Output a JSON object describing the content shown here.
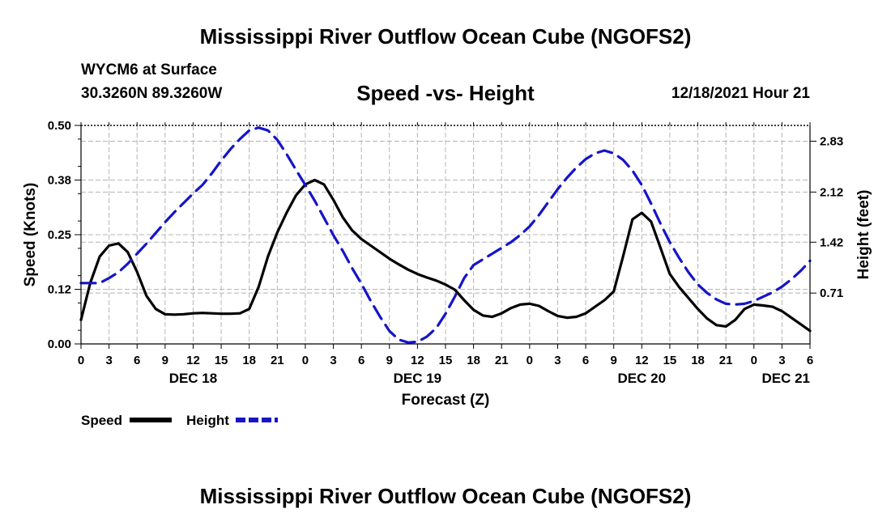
{
  "header": {
    "title": "Mississippi River Outflow Ocean Cube (NGOFS2)",
    "station": "WYCM6 at Surface",
    "coords": "30.3260N  89.3260W",
    "subtitle": "Speed -vs- Height",
    "timestamp": "12/18/2021 Hour 21"
  },
  "footer": {
    "title": "Mississippi River Outflow Ocean Cube (NGOFS2)"
  },
  "colors": {
    "speed": "#000000",
    "height": "#1515c8",
    "grid": "#b4b4b4"
  },
  "chart_data": {
    "type": "line",
    "xlabel": "Forecast (Z)",
    "ylabel_left": "Speed (Knots)",
    "ylabel_right": "Height (feet)",
    "x_range_hours": [
      0,
      78
    ],
    "ylim_left": [
      0,
      0.5
    ],
    "ylim_right": [
      0,
      3.05
    ],
    "yticks_left": [
      {
        "value": 0.0,
        "label": "0.00"
      },
      {
        "value": 0.125,
        "label": "0.12"
      },
      {
        "value": 0.25,
        "label": "0.25"
      },
      {
        "value": 0.375,
        "label": "0.38"
      },
      {
        "value": 0.5,
        "label": "0.50"
      }
    ],
    "yticks_right": [
      {
        "value": 0.71,
        "label": "0.71"
      },
      {
        "value": 1.42,
        "label": "1.42"
      },
      {
        "value": 2.12,
        "label": "2.12"
      },
      {
        "value": 2.83,
        "label": "2.83"
      }
    ],
    "xticks": [
      {
        "h": 0,
        "label": "0"
      },
      {
        "h": 3,
        "label": "3"
      },
      {
        "h": 6,
        "label": "6"
      },
      {
        "h": 9,
        "label": "9"
      },
      {
        "h": 12,
        "label": "12"
      },
      {
        "h": 15,
        "label": "15"
      },
      {
        "h": 18,
        "label": "18"
      },
      {
        "h": 21,
        "label": "21"
      },
      {
        "h": 24,
        "label": "0"
      },
      {
        "h": 27,
        "label": "3"
      },
      {
        "h": 30,
        "label": "6"
      },
      {
        "h": 33,
        "label": "9"
      },
      {
        "h": 36,
        "label": "12"
      },
      {
        "h": 39,
        "label": "15"
      },
      {
        "h": 42,
        "label": "18"
      },
      {
        "h": 45,
        "label": "21"
      },
      {
        "h": 48,
        "label": "0"
      },
      {
        "h": 51,
        "label": "3"
      },
      {
        "h": 54,
        "label": "6"
      },
      {
        "h": 57,
        "label": "9"
      },
      {
        "h": 60,
        "label": "12"
      },
      {
        "h": 63,
        "label": "15"
      },
      {
        "h": 66,
        "label": "18"
      },
      {
        "h": 69,
        "label": "21"
      },
      {
        "h": 72,
        "label": "0"
      },
      {
        "h": 75,
        "label": "3"
      },
      {
        "h": 78,
        "label": "6"
      }
    ],
    "day_labels": [
      {
        "h": 12,
        "label": "DEC 18"
      },
      {
        "h": 36,
        "label": "DEC 19"
      },
      {
        "h": 60,
        "label": "DEC 20"
      },
      {
        "h": 78,
        "label": "DEC 21"
      }
    ],
    "legend": [
      {
        "name": "Speed",
        "style": "solid"
      },
      {
        "name": "Height",
        "style": "dashed"
      }
    ],
    "series": [
      {
        "name": "Speed",
        "axis": "left",
        "style": "solid",
        "x": [
          0,
          1,
          2,
          3,
          4,
          5,
          6,
          7,
          8,
          9,
          10,
          11,
          12,
          13,
          14,
          15,
          16,
          17,
          18,
          19,
          20,
          21,
          22,
          23,
          24,
          25,
          26,
          27,
          28,
          29,
          30,
          31,
          32,
          33,
          34,
          35,
          36,
          37,
          38,
          39,
          40,
          41,
          42,
          43,
          44,
          45,
          46,
          47,
          48,
          49,
          50,
          51,
          52,
          53,
          54,
          55,
          56,
          57,
          58,
          59,
          60,
          61,
          62,
          63,
          64,
          65,
          66,
          67,
          68,
          69,
          70,
          71,
          72,
          73,
          74,
          75,
          76,
          77,
          78
        ],
        "values": [
          0.055,
          0.14,
          0.2,
          0.225,
          0.23,
          0.21,
          0.165,
          0.11,
          0.08,
          0.068,
          0.067,
          0.068,
          0.07,
          0.071,
          0.07,
          0.069,
          0.069,
          0.07,
          0.08,
          0.13,
          0.2,
          0.255,
          0.3,
          0.34,
          0.365,
          0.375,
          0.365,
          0.33,
          0.29,
          0.26,
          0.24,
          0.225,
          0.21,
          0.195,
          0.182,
          0.17,
          0.16,
          0.152,
          0.145,
          0.136,
          0.124,
          0.1,
          0.078,
          0.065,
          0.062,
          0.07,
          0.082,
          0.09,
          0.092,
          0.087,
          0.075,
          0.064,
          0.06,
          0.062,
          0.07,
          0.085,
          0.1,
          0.12,
          0.2,
          0.285,
          0.3,
          0.28,
          0.22,
          0.16,
          0.13,
          0.105,
          0.08,
          0.058,
          0.043,
          0.04,
          0.055,
          0.08,
          0.09,
          0.088,
          0.085,
          0.075,
          0.06,
          0.045,
          0.03
        ]
      },
      {
        "name": "Height",
        "axis": "right",
        "style": "dashed",
        "x": [
          0,
          1,
          2,
          3,
          4,
          5,
          6,
          7,
          8,
          9,
          10,
          11,
          12,
          13,
          14,
          15,
          16,
          17,
          18,
          19,
          20,
          21,
          22,
          23,
          24,
          25,
          26,
          27,
          28,
          29,
          30,
          31,
          32,
          33,
          34,
          35,
          36,
          37,
          38,
          39,
          40,
          41,
          42,
          43,
          44,
          45,
          46,
          47,
          48,
          49,
          50,
          51,
          52,
          53,
          54,
          55,
          56,
          57,
          58,
          59,
          60,
          61,
          62,
          63,
          64,
          65,
          66,
          67,
          68,
          69,
          70,
          71,
          72,
          73,
          74,
          75,
          76,
          77,
          78
        ],
        "values": [
          0.85,
          0.85,
          0.85,
          0.92,
          1.0,
          1.12,
          1.26,
          1.4,
          1.55,
          1.7,
          1.84,
          1.97,
          2.1,
          2.22,
          2.38,
          2.56,
          2.72,
          2.86,
          2.98,
          3.02,
          2.98,
          2.85,
          2.65,
          2.43,
          2.22,
          2.0,
          1.76,
          1.52,
          1.3,
          1.06,
          0.84,
          0.6,
          0.38,
          0.18,
          0.06,
          0.02,
          0.03,
          0.1,
          0.22,
          0.42,
          0.66,
          0.92,
          1.1,
          1.18,
          1.26,
          1.34,
          1.42,
          1.52,
          1.64,
          1.8,
          1.98,
          2.16,
          2.32,
          2.46,
          2.58,
          2.66,
          2.7,
          2.66,
          2.57,
          2.42,
          2.22,
          1.96,
          1.68,
          1.42,
          1.2,
          1.0,
          0.83,
          0.71,
          0.62,
          0.56,
          0.55,
          0.56,
          0.6,
          0.66,
          0.72,
          0.8,
          0.9,
          1.02,
          1.16
        ]
      }
    ]
  }
}
